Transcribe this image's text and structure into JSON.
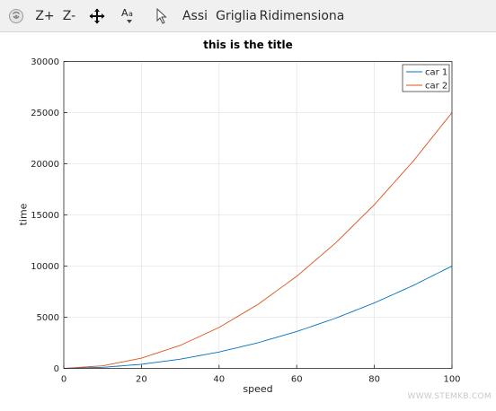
{
  "toolbar": {
    "zoom_in_label": "Z+",
    "zoom_out_label": "Z-",
    "axes_label": "Assi",
    "grid_label": "Griglia",
    "resize_label": "Ridimensiona",
    "icons": [
      "octave-logo-icon",
      "pan-icon",
      "text-size-icon",
      "pointer-icon"
    ]
  },
  "chart_data": {
    "type": "line",
    "title": "this is the title",
    "xlabel": "speed",
    "ylabel": "time",
    "xlim": [
      0,
      100
    ],
    "ylim": [
      0,
      30000
    ],
    "xticks": [
      0,
      20,
      40,
      60,
      80,
      100
    ],
    "yticks": [
      0,
      5000,
      10000,
      15000,
      20000,
      25000,
      30000
    ],
    "grid": true,
    "legend_placement": "top-right",
    "series": [
      {
        "name": "car 1",
        "color": "#0072bd",
        "x": [
          0,
          10,
          20,
          30,
          40,
          50,
          60,
          70,
          80,
          90,
          100
        ],
        "y": [
          0,
          100,
          400,
          900,
          1600,
          2500,
          3600,
          4900,
          6400,
          8100,
          10000
        ]
      },
      {
        "name": "car 2",
        "color": "#d95319",
        "x": [
          0,
          10,
          20,
          30,
          40,
          50,
          60,
          70,
          80,
          90,
          100
        ],
        "y": [
          0,
          250,
          1000,
          2250,
          4000,
          6250,
          9000,
          12250,
          16000,
          20250,
          25000
        ]
      }
    ]
  },
  "watermark": "WWW.STEMKB.COM"
}
